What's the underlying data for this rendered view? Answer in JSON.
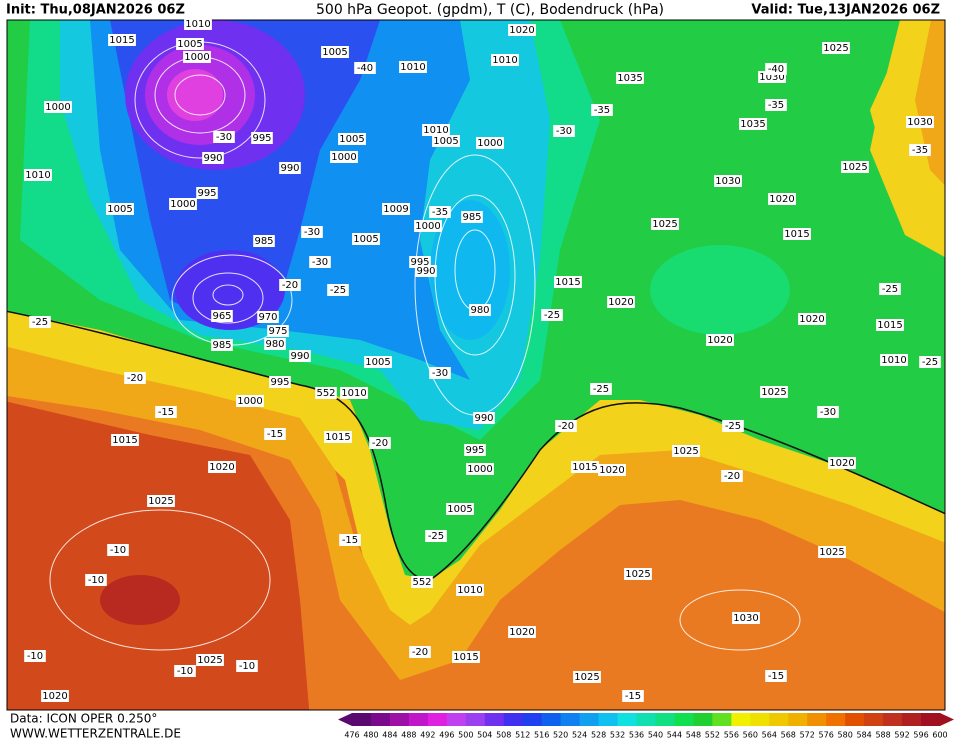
{
  "header": {
    "init": "Init: Thu,08JAN2026 06Z",
    "title": "500 hPa Geopot. (gpdm), T (C), Bodendruck (hPa)",
    "valid": "Valid: Tue,13JAN2026 06Z"
  },
  "footer": {
    "source": "Data: ICON OPER 0.250°",
    "site": "WWW.WETTERZENTRALE.DE"
  },
  "colorbar": {
    "labels": [
      476,
      480,
      484,
      488,
      492,
      496,
      500,
      504,
      508,
      512,
      516,
      520,
      524,
      528,
      532,
      536,
      540,
      544,
      548,
      552,
      556,
      560,
      564,
      568,
      572,
      576,
      580,
      584,
      588,
      592,
      596,
      600
    ],
    "colors": [
      "#5a0a6e",
      "#7a0a8c",
      "#9c10a8",
      "#c018c8",
      "#e020e0",
      "#c040f0",
      "#9a40f0",
      "#7030f0",
      "#4030f0",
      "#2040f0",
      "#1060f0",
      "#1080f0",
      "#10a0f0",
      "#10c0f0",
      "#10e0e0",
      "#10e0b0",
      "#10e080",
      "#10e050",
      "#20d030",
      "#60e020",
      "#f0f000",
      "#f0e000",
      "#f0c800",
      "#f0b000",
      "#f09000",
      "#f07000",
      "#e05000",
      "#d04010",
      "#c03020",
      "#b02020",
      "#a01020"
    ]
  },
  "map_labels": {
    "pressure": [
      "1010",
      "1015",
      "1005",
      "1000",
      "1005",
      "1010",
      "1020",
      "1010",
      "1000",
      "995",
      "990",
      "1010",
      "1005",
      "1000",
      "1005",
      "1000",
      "990",
      "1010",
      "995",
      "1000",
      "1005",
      "1009",
      "1000",
      "985",
      "1005",
      "985",
      "995",
      "990",
      "980",
      "965",
      "970",
      "975",
      "985",
      "980",
      "990",
      "1005",
      "995",
      "552",
      "1010",
      "1000",
      "1015",
      "1015",
      "1020",
      "990",
      "995",
      "1000",
      "1015",
      "1020",
      "1025",
      "1005",
      "1025",
      "1010",
      "552",
      "1020",
      "1015",
      "1025",
      "1020",
      "1025",
      "1030",
      "1025",
      "1025",
      "1020",
      "1025",
      "1020",
      "1020",
      "1015",
      "1020",
      "1015",
      "1010",
      "1025",
      "1030",
      "1020",
      "1015",
      "1025",
      "1035",
      "1030",
      "1035",
      "1025",
      "1030"
    ],
    "temperature": [
      "-30",
      "-35",
      "-30",
      "-30",
      "-25",
      "-20",
      "-25",
      "-20",
      "-15",
      "-15",
      "-20",
      "-25",
      "-15",
      "-10",
      "-10",
      "-10",
      "-10",
      "-10",
      "-20",
      "-15",
      "-15",
      "-20",
      "-25",
      "-30",
      "-25",
      "-25",
      "-30",
      "-35",
      "-35",
      "-40",
      "-35",
      "-40",
      "-30",
      "-25",
      "-25",
      "-20"
    ]
  }
}
